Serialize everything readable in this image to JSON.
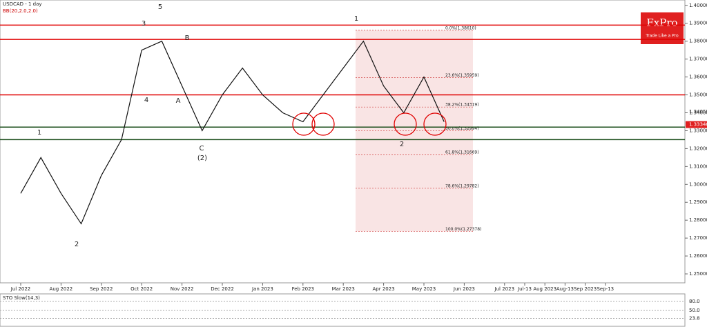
{
  "chart_data": {
    "type": "line",
    "title": "USDCAD - 1 day",
    "subtitle": "BB(20,2.0,2.0)",
    "logo": "FxPro",
    "logo_tagline": "Trade Like a Pro",
    "categories": [
      "Jul 2022",
      null,
      "Aug 2022",
      null,
      "Sep 2022",
      null,
      "Oct 2022",
      null,
      "Nov 2022",
      null,
      "Dec 2022",
      null,
      "Jan 2023",
      null,
      "Feb 2023",
      null,
      "Mar 2023",
      null,
      "Apr 2023",
      null,
      "May 2023",
      null,
      "Jun 2023",
      null,
      "Jul 2023",
      "Jul-13",
      "Aug 2023",
      "Aug-13",
      "Sep 2023",
      "Sep-13"
    ],
    "series": [
      {
        "name": "USDCAD",
        "color": "#111111",
        "values": [
          1.295,
          1.315,
          1.295,
          1.278,
          1.305,
          1.325,
          1.375,
          1.38,
          1.355,
          1.33,
          1.35,
          1.365,
          1.35,
          1.34,
          1.335,
          1.35,
          1.365,
          1.38,
          1.355,
          1.34,
          1.36,
          1.335,
          null,
          null,
          null,
          null,
          null,
          null,
          null,
          null
        ]
      }
    ],
    "ylim": [
      1.245,
      1.403
    ],
    "yticks": [
      {
        "value": 1.4,
        "label": "1.40000"
      },
      {
        "value": 1.39,
        "label": "1.39000"
      },
      {
        "value": 1.38,
        "label": "1.38000"
      },
      {
        "value": 1.37,
        "label": "1.37000"
      },
      {
        "value": 1.36,
        "label": "1.36000"
      },
      {
        "value": 1.35,
        "label": "1.35000"
      },
      {
        "value": 1.34,
        "label": "1.34000"
      },
      {
        "value": 1.33,
        "label": "1.33000"
      },
      {
        "value": 1.32,
        "label": "1.32000"
      },
      {
        "value": 1.31,
        "label": "1.31000"
      },
      {
        "value": 1.3,
        "label": "1.30000"
      },
      {
        "value": 1.29,
        "label": "1.29000"
      },
      {
        "value": 1.28,
        "label": "1.28000"
      },
      {
        "value": 1.27,
        "label": "1.27000"
      },
      {
        "value": 1.26,
        "label": "1.26000"
      },
      {
        "value": 1.25,
        "label": "1.25000"
      }
    ],
    "price_markers": [
      {
        "value": 1.34059,
        "label": "1.34059"
      },
      {
        "value": 1.3334,
        "label": "1.33340"
      }
    ],
    "red_levels": [
      1.389,
      1.381,
      1.35
    ],
    "red_color": "#e00000",
    "green_levels": [
      1.332,
      1.325
    ],
    "green_color": "#1a4d1a",
    "fib_levels": [
      {
        "value": 1.3861,
        "label": "0.0%(1.38610)"
      },
      {
        "value": 1.35959,
        "label": "23.6%(1.35959)"
      },
      {
        "value": 1.34319,
        "label": "38.2%(1.34319)"
      },
      {
        "value": 1.32994,
        "label": "50.0%(1.32994)"
      },
      {
        "value": 1.31669,
        "label": "61.8%(1.31669)"
      },
      {
        "value": 1.29782,
        "label": "78.6%(1.29782)"
      },
      {
        "value": 1.27378,
        "label": "100.0%(1.27378)"
      }
    ],
    "wave_labels": [
      "1",
      "2",
      "3",
      "4",
      "5",
      "A",
      "B",
      "C",
      "(2)",
      "1",
      "2"
    ],
    "oscillator": {
      "title": "STO Slow(14,3)",
      "ylim": [
        0,
        100
      ],
      "yticks": [
        {
          "value": 80,
          "label": "80.0"
        },
        {
          "value": 50,
          "label": "50.0"
        },
        {
          "value": 23.8,
          "label": "23.8"
        }
      ]
    }
  }
}
